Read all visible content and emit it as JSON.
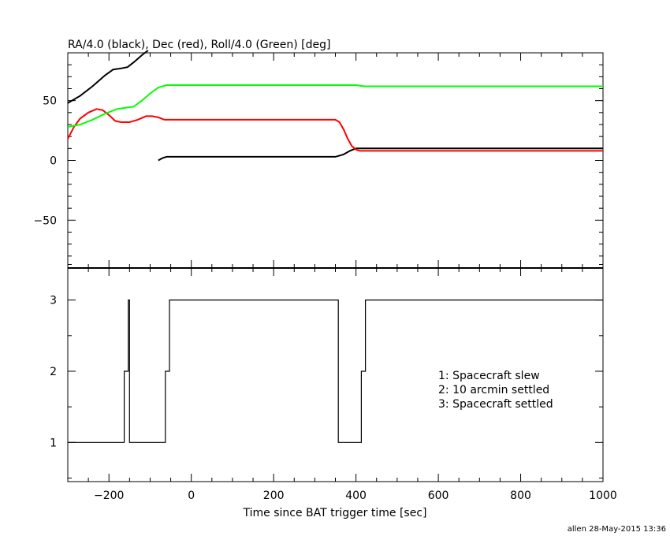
{
  "chart_data": [
    {
      "type": "line",
      "title": "RA/4.0 (black), Dec (red), Roll/4.0 (Green) [deg]",
      "xlim": [
        -300,
        1000
      ],
      "ylim": [
        -90,
        90
      ],
      "yticks": [
        -50,
        0,
        50
      ],
      "ytick_labels": [
        "−50",
        "0",
        "50"
      ],
      "series": [
        {
          "color": "#000000",
          "segments": [
            {
              "x": [
                -300,
                -270,
                -240,
                -210,
                -190,
                -170,
                -155,
                -140,
                -120,
                -105
              ],
              "y": [
                48,
                54,
                62,
                71,
                76,
                77,
                78,
                82,
                88,
                92
              ]
            },
            {
              "x": [
                -80,
                -70,
                -60,
                -50,
                0,
                100,
                200,
                300,
                350,
                370,
                385,
                400,
                420,
                500,
                700,
                1000
              ],
              "y": [
                0,
                2,
                3,
                3,
                3,
                3,
                3,
                3,
                3,
                5,
                8,
                10,
                10,
                10,
                10,
                10
              ]
            }
          ]
        },
        {
          "color": "#ff0000",
          "segments": [
            {
              "x": [
                -300,
                -285,
                -270,
                -250,
                -230,
                -215,
                -200,
                -185,
                -170,
                -150,
                -130,
                -110,
                -95,
                -80,
                -65,
                -50,
                0,
                100,
                200,
                300,
                350,
                360,
                370,
                380,
                390,
                400,
                410,
                420,
                500,
                700,
                1000
              ],
              "y": [
                18,
                28,
                35,
                40,
                43,
                42,
                38,
                33,
                32,
                32,
                34,
                37,
                37,
                36,
                34,
                34,
                34,
                34,
                34,
                34,
                34,
                32,
                26,
                18,
                12,
                9,
                8,
                8,
                8,
                8,
                8
              ]
            }
          ]
        },
        {
          "color": "#00ff00",
          "segments": [
            {
              "x": [
                -300,
                -270,
                -240,
                -210,
                -180,
                -160,
                -140,
                -120,
                -100,
                -80,
                -60,
                -50,
                0,
                100,
                200,
                300,
                400,
                420,
                500,
                700,
                1000
              ],
              "y": [
                28,
                30,
                34,
                39,
                43,
                44,
                45,
                50,
                56,
                61,
                63,
                63,
                63,
                63,
                63,
                63,
                63,
                62,
                62,
                62,
                62
              ]
            }
          ]
        }
      ]
    },
    {
      "type": "line",
      "xlabel": "Time since BAT trigger time [sec]",
      "xlim": [
        -300,
        1000
      ],
      "ylim": [
        0.45,
        3.45
      ],
      "xticks": [
        -200,
        0,
        200,
        400,
        600,
        800,
        1000
      ],
      "xtick_labels": [
        "−200",
        "0",
        "200",
        "400",
        "600",
        "800",
        "1000"
      ],
      "yticks": [
        1,
        2,
        3
      ],
      "ytick_labels": [
        "1",
        "2",
        "3"
      ],
      "series": [
        {
          "color": "#000000",
          "step_x": [
            -300,
            -163,
            -163,
            -153,
            -153,
            -150,
            -150,
            -148,
            -148,
            -63,
            -63,
            -53,
            -53,
            357,
            357,
            413,
            413,
            423,
            423,
            1000
          ],
          "step_y": [
            1,
            1,
            2,
            2,
            3,
            3,
            1,
            1,
            1,
            1,
            2,
            2,
            3,
            3,
            1,
            1,
            2,
            2,
            3,
            3
          ]
        }
      ],
      "legend": [
        "1: Spacecraft slew",
        "2: 10 arcmin settled",
        "3: Spacecraft settled"
      ]
    }
  ],
  "footer": "allen 28-May-2015 13:36"
}
